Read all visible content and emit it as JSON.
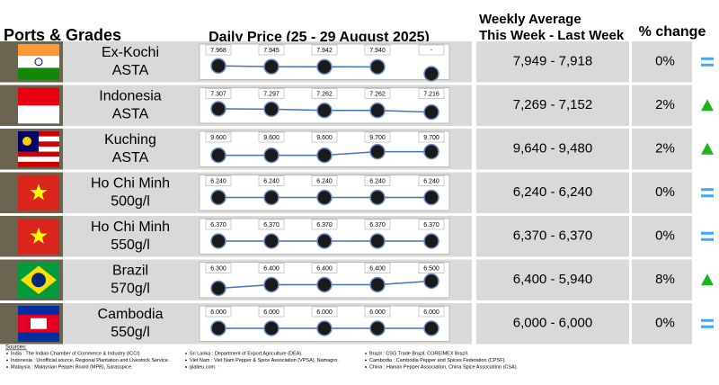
{
  "header": {
    "ports": "Ports & Grades",
    "daily": "Daily Price (25 - 29 August 2025)",
    "weekly": [
      "Weekly Average",
      "This Week - Last Week"
    ],
    "change": "% change"
  },
  "rows": [
    {
      "name": [
        "Ex-Kochi",
        "ASTA"
      ],
      "prices": [
        7968,
        7945,
        7942,
        7940,
        null
      ],
      "price_labels": [
        "7.968",
        "7.945",
        "7.942",
        "7.940",
        "-"
      ],
      "weekly": "7,949 - 7,918",
      "change": "0%",
      "trend": "flat"
    },
    {
      "name": [
        "Indonesia",
        "ASTA"
      ],
      "prices": [
        7307,
        7297,
        7262,
        7262,
        7216
      ],
      "price_labels": [
        "7.307",
        "7.297",
        "7.262",
        "7.262",
        "7.216"
      ],
      "weekly": "7,269 - 7,152",
      "change": "2%",
      "trend": "up"
    },
    {
      "name": [
        "Kuching",
        "ASTA"
      ],
      "prices": [
        9600,
        9600,
        9600,
        9700,
        9700
      ],
      "price_labels": [
        "9.600",
        "9.600",
        "9.600",
        "9.700",
        "9.700"
      ],
      "weekly": "9,640 - 9,480",
      "change": "2%",
      "trend": "up"
    },
    {
      "name": [
        "Ho Chi Minh",
        "500g/l"
      ],
      "prices": [
        6240,
        6240,
        6240,
        6240,
        6240
      ],
      "price_labels": [
        "6.240",
        "6.240",
        "6.240",
        "6.240",
        "6.240"
      ],
      "weekly": "6,240 - 6,240",
      "change": "0%",
      "trend": "flat"
    },
    {
      "name": [
        "Ho Chi Minh",
        "550g/l"
      ],
      "prices": [
        6370,
        6370,
        6370,
        6370,
        6370
      ],
      "price_labels": [
        "6.370",
        "6.370",
        "6.370",
        "6.370",
        "6.370"
      ],
      "weekly": "6,370 - 6,370",
      "change": "0%",
      "trend": "flat"
    },
    {
      "name": [
        "Brazil",
        "570g/l"
      ],
      "prices": [
        6300,
        6400,
        6400,
        6400,
        6500
      ],
      "price_labels": [
        "6.300",
        "6.400",
        "6.400",
        "6.400",
        "6.500"
      ],
      "weekly": "6,400 - 5,940",
      "change": "8%",
      "trend": "up"
    },
    {
      "name": [
        "Cambodia",
        "550g/l"
      ],
      "prices": [
        6000,
        6000,
        6000,
        6000,
        6000
      ],
      "price_labels": [
        "6.000",
        "6.000",
        "6.000",
        "6.000",
        "6.000"
      ],
      "weekly": "6,000 - 6,000",
      "change": "0%",
      "trend": "flat"
    }
  ],
  "sources": {
    "title": "Sources:",
    "columns": [
      [
        "India : The Indian Chamber of Commerce & Industry (ICCI)",
        "Indonesia : Unofficial source, Regional Plantation and Livestock Service.",
        "Malaysia : Malaysian Pepper Board (MPB), Sarasspice."
      ],
      [
        "Sri Lanka : Department of Export Agriculture (DEA).",
        "Viet Nam : Viet Nam Pepper & Spice Association (VPSA), Namagro.",
        "giatieu.com."
      ],
      [
        "Brazil : CSG Trade Brazil, COREIMEX Brazil.",
        "Cambodia : Cambodia Pepper and Spices Federation (CPSF).",
        "China : Hainan Pepper Association, China Spice Association (CSA)."
      ]
    ]
  }
}
